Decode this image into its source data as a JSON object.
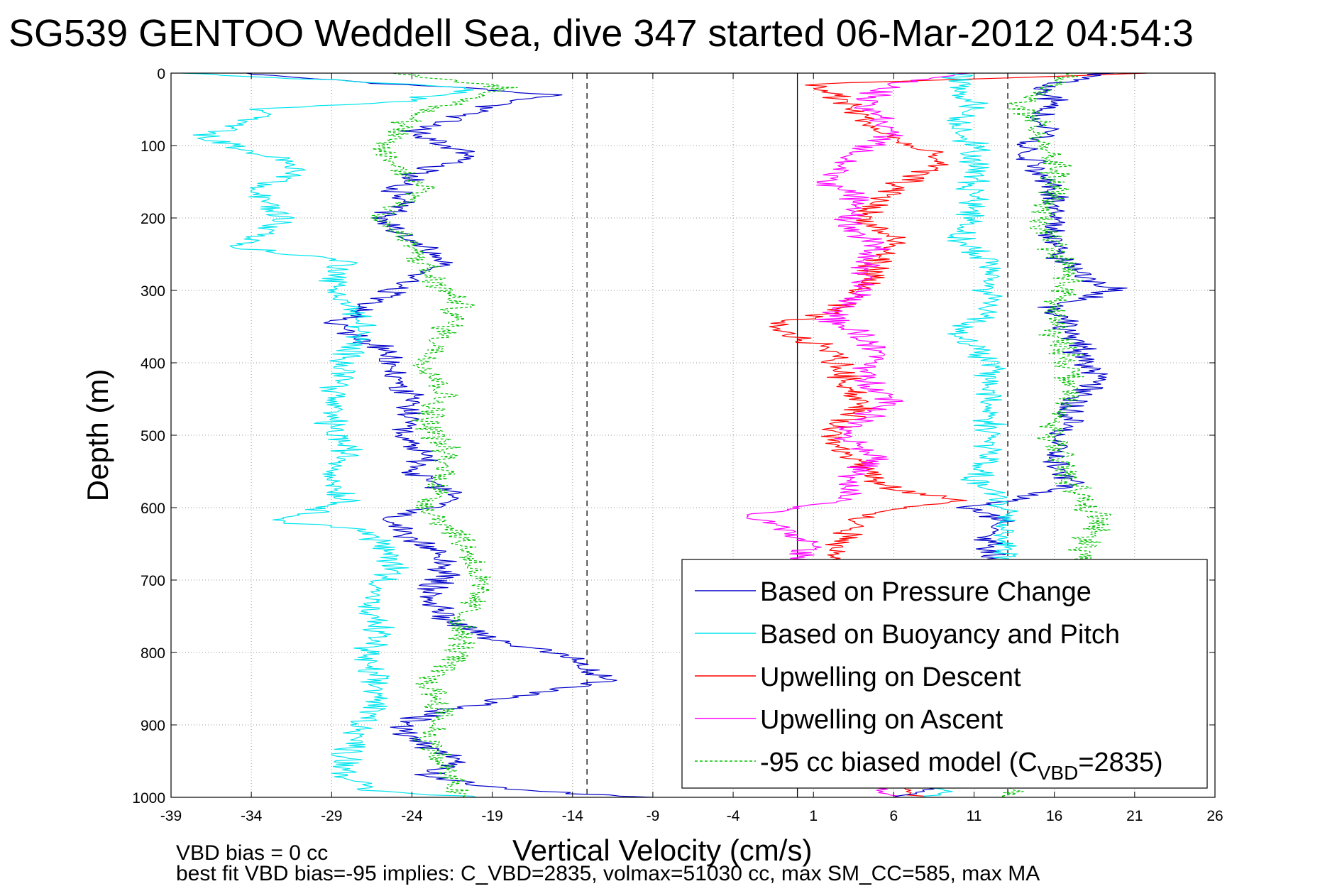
{
  "chart_data": {
    "type": "line",
    "title": "SG539 GENTOO Weddell Sea, dive 347 started 06-Mar-2012 04:54:3",
    "xlabel": "Vertical Velocity (cm/s)",
    "ylabel": "Depth (m)",
    "xlim": [
      -39,
      26
    ],
    "ylim": [
      0,
      1000
    ],
    "y_reversed": true,
    "xticks": [
      -39,
      -34,
      -29,
      -24,
      -19,
      -14,
      -9,
      -4,
      1,
      6,
      11,
      16,
      21,
      26
    ],
    "yticks": [
      0,
      100,
      200,
      300,
      400,
      500,
      600,
      700,
      800,
      900,
      1000
    ],
    "grid": true,
    "legend_position": "bottom-right",
    "footnotes": [
      "VBD bias = 0 cc",
      "best fit VBD bias=-95 implies: C_VBD=2835, volmax=51030 cc, max SM_CC=585, max MA"
    ],
    "reference_lines": {
      "solid_x": [
        0
      ],
      "dashed_x": [
        -13.1,
        13.1
      ]
    },
    "legend": [
      {
        "label": "Based on Pressure Change",
        "color": "#0000c8",
        "dashed": false
      },
      {
        "label": "Based on Buoyancy and Pitch",
        "color": "#00e5ee",
        "dashed": false
      },
      {
        "label": "Upwelling on Descent",
        "color": "#ff0000",
        "dashed": false
      },
      {
        "label": "Upwelling on Ascent",
        "color": "#ff00ff",
        "dashed": false
      },
      {
        "label": "-95 cc biased model (C",
        "sub": "VBD",
        "tail": "=2835)",
        "color": "#00c000",
        "dashed": true
      }
    ],
    "series": [
      {
        "name": "Based on Pressure Change",
        "color": "#0000c8",
        "depth": [
          0,
          30,
          40,
          60,
          80,
          100,
          115,
          130,
          160,
          180,
          200,
          230,
          260,
          300,
          330,
          345,
          380,
          420,
          460,
          500,
          530,
          550,
          590,
          610,
          640,
          660,
          690,
          720,
          750,
          780,
          810,
          840,
          860,
          880,
          900,
          930,
          950,
          970,
          990,
          1000
        ],
        "values": [
          -35,
          -15,
          -18,
          -21,
          -24,
          -22,
          -20,
          -23,
          -25,
          -24,
          -26,
          -24,
          -22,
          -25,
          -27,
          -29,
          -26,
          -25,
          -24,
          -25,
          -23,
          -24,
          -21,
          -25,
          -25,
          -22,
          -22,
          -23,
          -22,
          -19,
          -14,
          -12,
          -17,
          -22,
          -25,
          -23,
          -21,
          -23,
          -18,
          -9
        ]
      },
      {
        "name": "Based on Buoyancy and Pitch",
        "color": "#00e5ee",
        "depth": [
          0,
          20,
          30,
          40,
          50,
          55,
          70,
          90,
          120,
          140,
          160,
          180,
          200,
          220,
          240,
          260,
          290,
          320,
          350,
          380,
          410,
          450,
          490,
          520,
          560,
          590,
          620,
          630,
          650,
          680,
          710,
          740,
          770,
          810,
          860,
          900,
          940,
          970,
          990,
          1000
        ],
        "values": [
          -38,
          -20,
          -22,
          -25,
          -34,
          -33,
          -35,
          -37,
          -32,
          -31,
          -34,
          -33,
          -32,
          -33,
          -35,
          -28,
          -29,
          -28,
          -27,
          -28,
          -28,
          -29,
          -29,
          -28,
          -29,
          -28,
          -32,
          -27,
          -26,
          -25,
          -26,
          -27,
          -26,
          -27,
          -26,
          -27,
          -28,
          -28,
          -27,
          -20
        ]
      },
      {
        "name": "-95 cc biased model (CVBD=2835)",
        "color": "#00c000",
        "depth": [
          0,
          20,
          40,
          60,
          100,
          130,
          160,
          200,
          240,
          280,
          320,
          360,
          400,
          440,
          480,
          520,
          560,
          600,
          640,
          680,
          720,
          760,
          800,
          840,
          880,
          920,
          960,
          1000
        ],
        "values": [
          -25,
          -18,
          -21,
          -24,
          -26,
          -25,
          -23,
          -26,
          -24,
          -23,
          -21,
          -22,
          -23,
          -22,
          -23,
          -22,
          -22,
          -23,
          -21,
          -20,
          -20,
          -21,
          -21,
          -23,
          -22,
          -23,
          -22,
          -21
        ]
      },
      {
        "name": "Upwelling on Descent",
        "color": "#ff0000",
        "depth": [
          0,
          15,
          40,
          80,
          120,
          160,
          200,
          230,
          260,
          300,
          330,
          350,
          380,
          420,
          460,
          500,
          540,
          570,
          590,
          610,
          640,
          670,
          700,
          750,
          800,
          850,
          900,
          950,
          1000
        ],
        "values": [
          22,
          1,
          3,
          5,
          9,
          6,
          4,
          6,
          5,
          4,
          2,
          -2,
          2,
          3,
          4,
          2,
          4,
          5,
          10,
          4,
          3,
          2,
          3,
          4,
          4,
          3,
          4,
          3,
          8
        ]
      },
      {
        "name": "Upwelling on Ascent",
        "color": "#ff00ff",
        "depth": [
          0,
          15,
          40,
          80,
          120,
          150,
          180,
          210,
          240,
          270,
          300,
          340,
          360,
          390,
          420,
          450,
          480,
          500,
          530,
          560,
          590,
          610,
          630,
          650,
          670,
          700,
          750,
          800,
          850,
          900,
          950,
          1000
        ],
        "values": [
          10,
          6,
          4,
          6,
          3,
          2,
          4,
          3,
          5,
          4,
          4,
          2,
          4,
          5,
          4,
          6,
          4,
          3,
          5,
          3,
          3,
          -3,
          -1,
          1,
          0,
          2,
          3,
          3,
          2,
          3,
          2,
          6
        ]
      },
      {
        "name": "Based on Pressure Change (ascent)",
        "color": "#0000c8",
        "depth": [
          0,
          20,
          40,
          60,
          80,
          100,
          130,
          160,
          200,
          240,
          270,
          300,
          320,
          360,
          400,
          420,
          450,
          480,
          510,
          540,
          570,
          600,
          620,
          640,
          660,
          680,
          720,
          760,
          800,
          850,
          900,
          950,
          990,
          1000
        ],
        "values": [
          19,
          15,
          16,
          15,
          16,
          14,
          15,
          16,
          16,
          16,
          17,
          20,
          16,
          17,
          18,
          19,
          17,
          17,
          16,
          16,
          17,
          11,
          13,
          12,
          12,
          13,
          13,
          12,
          13,
          12,
          13,
          12,
          8,
          6
        ]
      },
      {
        "name": "Based on Buoyancy and Pitch (ascent)",
        "color": "#00e5ee",
        "depth": [
          0,
          20,
          40,
          70,
          100,
          140,
          160,
          200,
          230,
          260,
          300,
          330,
          360,
          400,
          440,
          480,
          520,
          560,
          600,
          640,
          680,
          720,
          760,
          800,
          860,
          900,
          950,
          1000
        ],
        "values": [
          10,
          10,
          11,
          10,
          11,
          11,
          11,
          11,
          10,
          12,
          12,
          12,
          10,
          12,
          12,
          12,
          12,
          11,
          13,
          13,
          13,
          13,
          12,
          13,
          13,
          12,
          13,
          8
        ]
      },
      {
        "name": "-95 cc biased model (ascent)",
        "color": "#00c000",
        "depth": [
          0,
          40,
          80,
          120,
          160,
          200,
          240,
          280,
          320,
          360,
          400,
          440,
          480,
          520,
          560,
          600,
          620,
          640,
          660,
          700,
          750,
          800,
          850,
          900,
          950,
          1000
        ],
        "values": [
          17,
          14,
          15,
          16,
          16,
          15,
          16,
          17,
          16,
          16,
          17,
          17,
          16,
          16,
          17,
          18,
          19,
          18,
          18,
          17,
          16,
          15,
          16,
          15,
          15,
          13
        ]
      }
    ]
  }
}
